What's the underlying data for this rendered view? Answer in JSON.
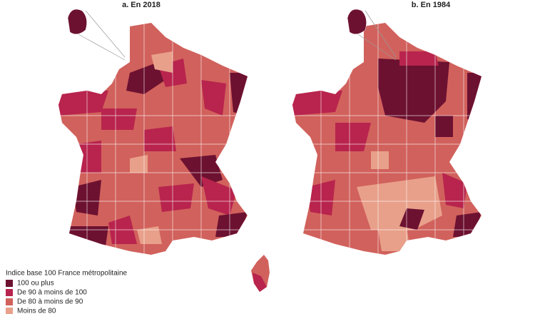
{
  "panels": [
    {
      "title": "a. En 2018"
    },
    {
      "title": "b. En 1984"
    }
  ],
  "legend": {
    "title": "Indice base 100 France métropolitaine",
    "items": [
      {
        "label": "100 ou plus",
        "color": "#6d1131"
      },
      {
        "label": "De 90 à moins de 100",
        "color": "#b8244d"
      },
      {
        "label": "De 80 à moins de 90",
        "color": "#d1615c"
      },
      {
        "label": "Moins de 80",
        "color": "#e8a08a"
      }
    ]
  }
}
